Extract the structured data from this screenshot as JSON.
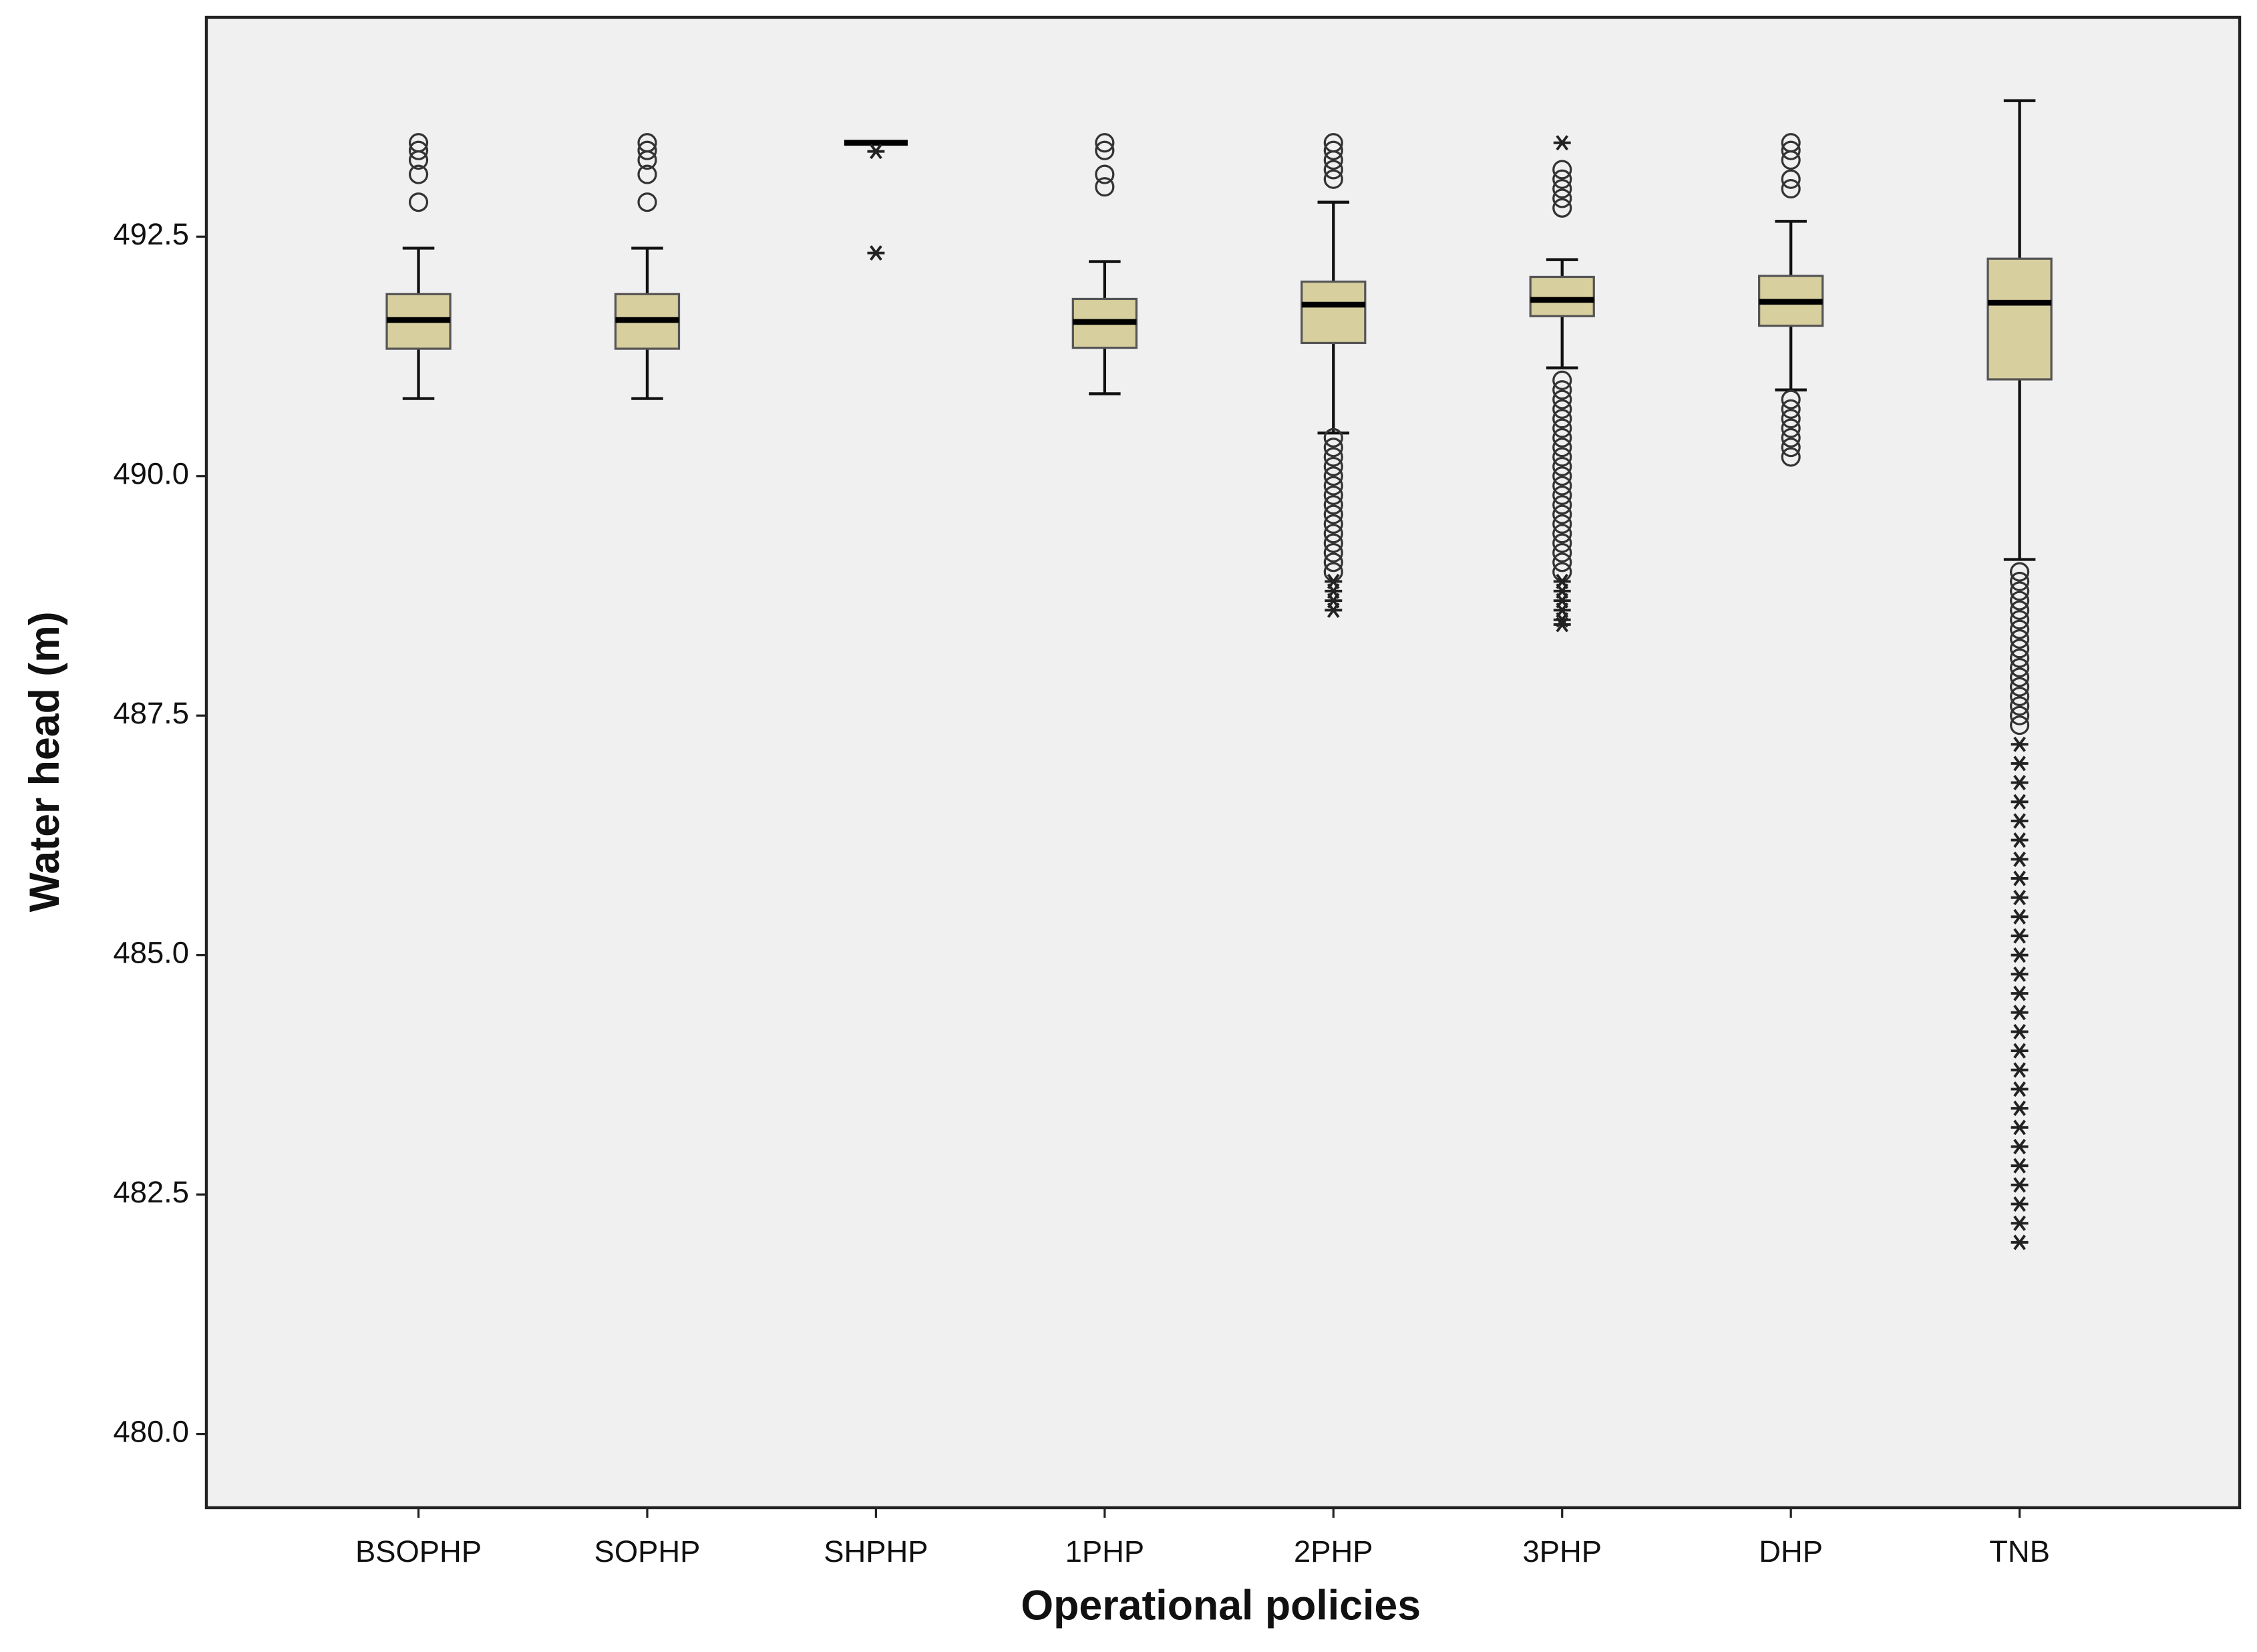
{
  "chart_data": {
    "type": "box",
    "x_label": "Operational policies",
    "y_label": "Water head (m)",
    "categories": [
      "BSOPHP",
      "SOPHP",
      "SHPHP",
      "1PHP",
      "2PHP",
      "3PHP",
      "DHP",
      "TNB"
    ],
    "whislo": [
      490.81,
      490.81,
      493.48,
      490.86,
      490.45,
      491.13,
      490.9,
      489.13
    ],
    "q1": [
      491.33,
      491.33,
      493.48,
      491.34,
      491.39,
      491.67,
      491.57,
      491.01
    ],
    "median": [
      491.63,
      491.63,
      493.48,
      491.61,
      491.79,
      491.84,
      491.82,
      491.81
    ],
    "q3": [
      491.9,
      491.9,
      493.48,
      491.85,
      492.03,
      492.08,
      492.09,
      492.27
    ],
    "whishi": [
      492.38,
      492.38,
      493.48,
      492.24,
      492.86,
      492.26,
      492.66,
      493.92
    ],
    "outliers": [
      [
        493.48,
        493.4,
        493.3,
        493.15,
        492.86
      ],
      [
        493.48,
        493.4,
        493.3,
        493.15,
        492.86
      ],
      [],
      [
        493.48,
        493.4,
        493.15,
        493.02
      ],
      [
        493.48,
        493.4,
        493.3,
        493.2,
        493.1,
        490.4,
        490.3,
        490.2,
        490.1,
        490.0,
        489.9,
        489.8,
        489.7,
        489.6,
        489.5,
        489.4,
        489.3,
        489.2,
        489.1,
        489.0
      ],
      [
        493.2,
        493.1,
        493.0,
        492.9,
        492.8,
        491.0,
        490.9,
        490.8,
        490.7,
        490.6,
        490.5,
        490.4,
        490.3,
        490.2,
        490.1,
        490.0,
        489.9,
        489.8,
        489.7,
        489.6,
        489.5,
        489.4,
        489.3,
        489.2,
        489.1,
        489.0
      ],
      [
        493.48,
        493.4,
        493.3,
        493.1,
        493.0,
        490.8,
        490.7,
        490.6,
        490.5,
        490.4,
        490.3,
        490.2
      ],
      [
        489.0,
        488.9,
        488.8,
        488.7,
        488.6,
        488.5,
        488.4,
        488.3,
        488.2,
        488.1,
        488.0,
        487.9,
        487.8,
        487.7,
        487.6,
        487.5,
        487.4
      ]
    ],
    "extremes": [
      [],
      [],
      [
        493.39,
        492.33
      ],
      [],
      [
        488.9,
        488.8,
        488.7,
        488.6
      ],
      [
        493.48,
        488.9,
        488.8,
        488.7,
        488.6,
        488.5,
        488.45
      ],
      [],
      [
        487.2,
        487.0,
        486.8,
        486.6,
        486.4,
        486.2,
        486.0,
        485.8,
        485.6,
        485.4,
        485.2,
        485.0,
        484.8,
        484.6,
        484.4,
        484.2,
        484.0,
        483.8,
        483.6,
        483.4,
        483.2,
        483.0,
        482.8,
        482.6,
        482.4,
        482.2,
        482.0
      ]
    ],
    "color": "#d8cf9f",
    "ylim": [
      479.23,
      494.79
    ],
    "yticks": [
      {
        "value": 480,
        "label": "480.0"
      },
      {
        "value": 482.5,
        "label": "482.5"
      },
      {
        "value": 485,
        "label": "485.0"
      },
      {
        "value": 487.5,
        "label": "487.5"
      },
      {
        "value": 490,
        "label": "490.0"
      },
      {
        "value": 492.5,
        "label": "492.5"
      }
    ]
  }
}
